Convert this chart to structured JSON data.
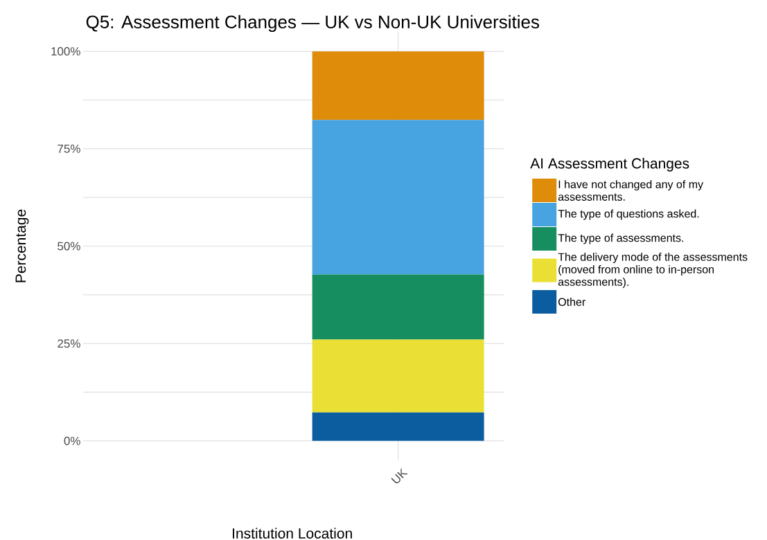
{
  "chart_data": {
    "type": "bar",
    "title": "Q5: Assessment Changes — UK vs Non-UK Universities",
    "xlabel": "Institution Location",
    "ylabel": "Percentage",
    "legend_title": "AI Assessment Changes",
    "categories": [
      "UK"
    ],
    "stacked": true,
    "series": [
      {
        "name": "Other",
        "color": "#0c5da0",
        "values": [
          7.3
        ]
      },
      {
        "name": "The delivery mode of the assessments (moved from online to in-person assessments).",
        "color": "#eae035",
        "values": [
          18.7
        ]
      },
      {
        "name": "The type of assessments.",
        "color": "#168e5f",
        "values": [
          16.7
        ]
      },
      {
        "name": "The type of questions asked.",
        "color": "#48a3e1",
        "values": [
          39.7
        ]
      },
      {
        "name": "I have not changed any of my assessments.",
        "color": "#de8c0a",
        "values": [
          17.6
        ]
      }
    ],
    "ylim": [
      -5,
      105
    ],
    "yticks": [
      {
        "value": 0,
        "label": "0%"
      },
      {
        "value": 12.5,
        "label": null
      },
      {
        "value": 25,
        "label": "25%"
      },
      {
        "value": 37.5,
        "label": null
      },
      {
        "value": 50,
        "label": "50%"
      },
      {
        "value": 62.5,
        "label": null
      },
      {
        "value": 75,
        "label": "75%"
      },
      {
        "value": 87.5,
        "label": null
      },
      {
        "value": 100,
        "label": "100%"
      }
    ],
    "grid": true,
    "legend": "right"
  }
}
